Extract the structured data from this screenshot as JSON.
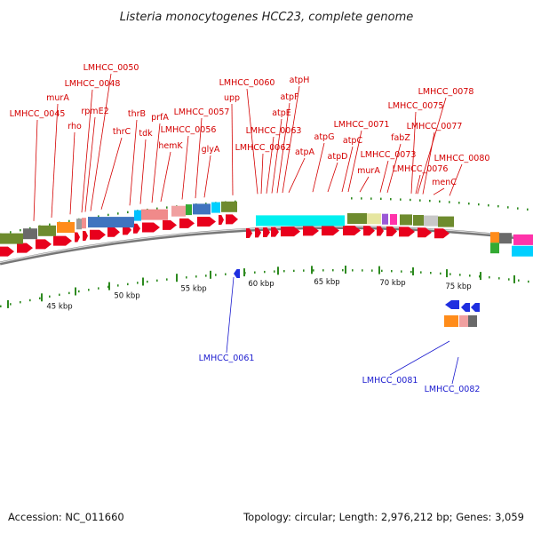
{
  "title": "Listeria monocytogenes HCC23, complete genome",
  "footer": {
    "accession": "Accession: NC_011660",
    "summary": "Topology: circular; Length: 2,976,212 bp; Genes: 3,059"
  },
  "colors": {
    "forward_gene": "#e8001c",
    "reverse_gene": "#1f2fe0",
    "label_forward": "#d40000",
    "label_reverse": "#1c1ccf",
    "backbone": "#777777",
    "tick": "#2d8a1f"
  },
  "tick_labels": [
    "45 kbp",
    "50 kbp",
    "55 kbp",
    "60 kbp",
    "65 kbp",
    "70 kbp",
    "75 kbp"
  ],
  "genes_top": [
    "LMHCC_0045",
    "rho",
    "murA",
    "LMHCC_0048",
    "rpmE2",
    "LMHCC_0050",
    "thrC",
    "thrB",
    "tdk",
    "prfA",
    "hemK",
    "LMHCC_0056",
    "LMHCC_0057",
    "glyA",
    "upp",
    "LMHCC_0060",
    "LMHCC_0062",
    "LMHCC_0063",
    "atpE",
    "atpF",
    "atpH",
    "atpA",
    "atpG",
    "atpD",
    "atpC",
    "LMHCC_0071",
    "murA",
    "LMHCC_0073",
    "fabZ",
    "LMHCC_0075",
    "LMHCC_0076",
    "LMHCC_0077",
    "menC",
    "LMHCC_0078",
    "LMHCC_0080"
  ],
  "genes_bottom": [
    "LMHCC_0061",
    "LMHCC_0081",
    "LMHCC_0082"
  ]
}
